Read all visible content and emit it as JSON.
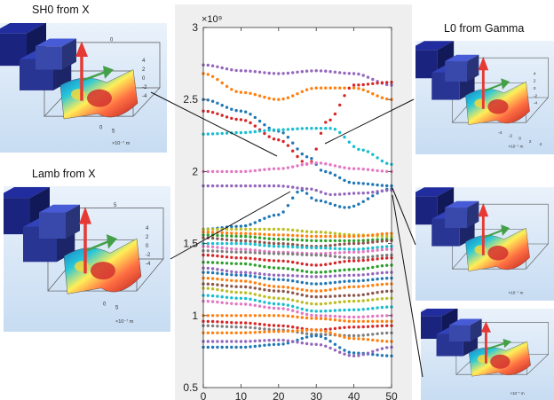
{
  "labels": {
    "sh0": "SH0 from X",
    "lamb": "Lamb from X",
    "l0": "L0 from Gamma"
  },
  "insets": {
    "sh0": {
      "z_ticks": [
        "4",
        "2",
        "0",
        "-2",
        "-4"
      ],
      "x_ticks": [
        "0",
        "5"
      ],
      "unit": "×10⁻⁷ m",
      "end_tick": "0"
    },
    "lamb": {
      "z_ticks": [
        "4",
        "2",
        "0",
        "-2",
        "-4"
      ],
      "x_ticks": [
        "0",
        "5"
      ],
      "unit": "×10⁻⁷ m",
      "end_tick": "5"
    },
    "l0": {
      "z_ticks": [
        "4",
        "2",
        "0",
        "-2",
        "-4"
      ],
      "x_ticks": [
        "-4",
        "-2",
        "0",
        "2",
        "4"
      ],
      "unit": "×10⁻⁷ m",
      "end_tick": ""
    },
    "right_mid": {
      "z_ticks": [
        "",
        "",
        "",
        "",
        ""
      ],
      "x_ticks": [],
      "unit": "×10⁻⁷ m",
      "end_tick": ""
    },
    "right_bottom": {
      "z_ticks": [
        "",
        "",
        "",
        "",
        ""
      ],
      "x_ticks": [],
      "unit": "×10⁻⁷ m",
      "end_tick": ""
    }
  },
  "chart_data": {
    "type": "scatter",
    "title": "",
    "xlabel": "",
    "ylabel": "",
    "y_multiplier_label": "×10⁹",
    "xlim": [
      0,
      50
    ],
    "ylim": [
      0.5,
      3
    ],
    "x_ticks": [
      "0",
      "10",
      "20",
      "30",
      "40",
      "50"
    ],
    "y_ticks": [
      "0.5",
      "1",
      "1.5",
      "2",
      "2.5",
      "3"
    ],
    "y_tick_values": [
      0.5,
      1,
      1.5,
      2,
      2.5,
      3
    ],
    "grid": false,
    "colors": [
      "#1f77b4",
      "#ff7f0e",
      "#2ca02c",
      "#d62728",
      "#9467bd",
      "#8c564b",
      "#e377c2",
      "#7f7f7f",
      "#bcbd22",
      "#17becf"
    ],
    "bands": [
      {
        "color": "#9467bd",
        "points": [
          [
            0,
            2.74
          ],
          [
            10,
            2.7
          ],
          [
            20,
            2.68
          ],
          [
            30,
            2.7
          ],
          [
            40,
            2.68
          ],
          [
            50,
            2.6
          ]
        ]
      },
      {
        "color": "#ff7f0e",
        "points": [
          [
            0,
            2.68
          ],
          [
            10,
            2.55
          ],
          [
            20,
            2.5
          ],
          [
            30,
            2.58
          ],
          [
            40,
            2.58
          ],
          [
            50,
            2.5
          ]
        ]
      },
      {
        "color": "#1f77b4",
        "points": [
          [
            0,
            2.5
          ],
          [
            10,
            2.42
          ],
          [
            20,
            2.28
          ],
          [
            28,
            2.1
          ],
          [
            32,
            2.0
          ],
          [
            40,
            1.92
          ],
          [
            50,
            1.9
          ]
        ]
      },
      {
        "color": "#d62728",
        "points": [
          [
            0,
            2.42
          ],
          [
            10,
            2.36
          ],
          [
            20,
            2.22
          ],
          [
            28,
            2.05
          ],
          [
            33,
            2.35
          ],
          [
            40,
            2.6
          ],
          [
            50,
            2.62
          ]
        ]
      },
      {
        "color": "#17becf",
        "points": [
          [
            0,
            2.26
          ],
          [
            10,
            2.27
          ],
          [
            20,
            2.29
          ],
          [
            28,
            2.3
          ],
          [
            34,
            2.3
          ],
          [
            42,
            2.15
          ],
          [
            50,
            2.05
          ]
        ]
      },
      {
        "color": "#e377c2",
        "points": [
          [
            0,
            2.0
          ],
          [
            10,
            2.0
          ],
          [
            20,
            2.02
          ],
          [
            30,
            2.06
          ],
          [
            40,
            2.02
          ],
          [
            50,
            2.0
          ]
        ]
      },
      {
        "color": "#1f77b4",
        "points": [
          [
            0,
            1.6
          ],
          [
            10,
            1.62
          ],
          [
            20,
            1.7
          ],
          [
            26,
            1.87
          ],
          [
            30,
            1.8
          ],
          [
            38,
            1.75
          ],
          [
            50,
            1.88
          ]
        ]
      },
      {
        "color": "#9467bd",
        "points": [
          [
            0,
            1.9
          ],
          [
            10,
            1.9
          ],
          [
            20,
            1.9
          ],
          [
            28,
            1.88
          ],
          [
            34,
            1.84
          ],
          [
            42,
            1.85
          ],
          [
            50,
            1.87
          ]
        ]
      },
      {
        "color": "#bcbd22",
        "points": [
          [
            0,
            1.6
          ],
          [
            10,
            1.6
          ],
          [
            20,
            1.6
          ],
          [
            30,
            1.58
          ],
          [
            40,
            1.56
          ],
          [
            50,
            1.55
          ]
        ]
      },
      {
        "color": "#ff7f0e",
        "points": [
          [
            0,
            1.58
          ],
          [
            10,
            1.57
          ],
          [
            20,
            1.56
          ],
          [
            30,
            1.55
          ],
          [
            40,
            1.55
          ],
          [
            50,
            1.57
          ]
        ]
      },
      {
        "color": "#2ca02c",
        "points": [
          [
            0,
            1.56
          ],
          [
            10,
            1.55
          ],
          [
            20,
            1.53
          ],
          [
            30,
            1.52
          ],
          [
            40,
            1.52
          ],
          [
            50,
            1.53
          ]
        ]
      },
      {
        "color": "#8c564b",
        "points": [
          [
            0,
            1.54
          ],
          [
            10,
            1.52
          ],
          [
            20,
            1.5
          ],
          [
            30,
            1.48
          ],
          [
            40,
            1.5
          ],
          [
            50,
            1.52
          ]
        ]
      },
      {
        "color": "#17becf",
        "points": [
          [
            0,
            1.5
          ],
          [
            10,
            1.5
          ],
          [
            20,
            1.48
          ],
          [
            30,
            1.47
          ],
          [
            40,
            1.46
          ],
          [
            50,
            1.48
          ]
        ]
      },
      {
        "color": "#e377c2",
        "points": [
          [
            0,
            1.48
          ],
          [
            10,
            1.46
          ],
          [
            20,
            1.44
          ],
          [
            30,
            1.43
          ],
          [
            40,
            1.44
          ],
          [
            50,
            1.46
          ]
        ]
      },
      {
        "color": "#7f7f7f",
        "points": [
          [
            0,
            1.45
          ],
          [
            10,
            1.44
          ],
          [
            20,
            1.43
          ],
          [
            30,
            1.42
          ],
          [
            40,
            1.4
          ],
          [
            50,
            1.42
          ]
        ]
      },
      {
        "color": "#d62728",
        "points": [
          [
            0,
            1.42
          ],
          [
            10,
            1.4
          ],
          [
            20,
            1.38
          ],
          [
            30,
            1.35
          ],
          [
            40,
            1.38
          ],
          [
            50,
            1.4
          ]
        ]
      },
      {
        "color": "#2ca02c",
        "points": [
          [
            0,
            1.37
          ],
          [
            10,
            1.36
          ],
          [
            20,
            1.33
          ],
          [
            30,
            1.3
          ],
          [
            40,
            1.32
          ],
          [
            50,
            1.35
          ]
        ]
      },
      {
        "color": "#9467bd",
        "points": [
          [
            0,
            1.33
          ],
          [
            10,
            1.3
          ],
          [
            20,
            1.28
          ],
          [
            30,
            1.27
          ],
          [
            40,
            1.28
          ],
          [
            50,
            1.3
          ]
        ]
      },
      {
        "color": "#1f77b4",
        "points": [
          [
            0,
            1.3
          ],
          [
            10,
            1.28
          ],
          [
            20,
            1.25
          ],
          [
            30,
            1.22
          ],
          [
            40,
            1.24
          ],
          [
            50,
            1.26
          ]
        ]
      },
      {
        "color": "#ff7f0e",
        "points": [
          [
            0,
            1.26
          ],
          [
            10,
            1.24
          ],
          [
            20,
            1.2
          ],
          [
            30,
            1.17
          ],
          [
            40,
            1.2
          ],
          [
            50,
            1.22
          ]
        ]
      },
      {
        "color": "#8c564b",
        "points": [
          [
            0,
            1.22
          ],
          [
            10,
            1.2
          ],
          [
            20,
            1.17
          ],
          [
            30,
            1.13
          ],
          [
            40,
            1.14
          ],
          [
            50,
            1.17
          ]
        ]
      },
      {
        "color": "#bcbd22",
        "points": [
          [
            0,
            1.19
          ],
          [
            10,
            1.16
          ],
          [
            20,
            1.12
          ],
          [
            30,
            1.08
          ],
          [
            40,
            1.1
          ],
          [
            50,
            1.12
          ]
        ]
      },
      {
        "color": "#17becf",
        "points": [
          [
            0,
            1.14
          ],
          [
            10,
            1.12
          ],
          [
            20,
            1.08
          ],
          [
            30,
            1.03
          ],
          [
            40,
            1.04
          ],
          [
            50,
            1.06
          ]
        ]
      },
      {
        "color": "#e377c2",
        "points": [
          [
            0,
            1.1
          ],
          [
            10,
            1.08
          ],
          [
            20,
            1.05
          ],
          [
            30,
            1.0
          ],
          [
            40,
            0.99
          ],
          [
            50,
            1.0
          ]
        ]
      },
      {
        "color": "#ff7f0e",
        "points": [
          [
            0,
            1.0
          ],
          [
            10,
            1.0
          ],
          [
            20,
            1.0
          ],
          [
            30,
            0.98
          ],
          [
            40,
            0.96
          ],
          [
            50,
            0.96
          ]
        ]
      },
      {
        "color": "#d62728",
        "points": [
          [
            0,
            0.96
          ],
          [
            10,
            0.95
          ],
          [
            20,
            0.93
          ],
          [
            30,
            0.9
          ],
          [
            40,
            0.92
          ],
          [
            50,
            0.93
          ]
        ]
      },
      {
        "color": "#7f7f7f",
        "points": [
          [
            0,
            0.93
          ],
          [
            10,
            0.92
          ],
          [
            20,
            0.9
          ],
          [
            30,
            0.87
          ],
          [
            40,
            0.86
          ],
          [
            50,
            0.88
          ]
        ]
      },
      {
        "color": "#ff7f0e",
        "points": [
          [
            0,
            0.88
          ],
          [
            10,
            0.88
          ],
          [
            20,
            0.89
          ],
          [
            30,
            0.9
          ],
          [
            40,
            0.84
          ],
          [
            50,
            0.82
          ]
        ]
      },
      {
        "color": "#1f77b4",
        "points": [
          [
            0,
            0.78
          ],
          [
            10,
            0.78
          ],
          [
            20,
            0.8
          ],
          [
            30,
            0.86
          ],
          [
            40,
            0.74
          ],
          [
            50,
            0.72
          ]
        ]
      },
      {
        "color": "#9467bd",
        "points": [
          [
            0,
            0.82
          ],
          [
            10,
            0.82
          ],
          [
            20,
            0.83
          ],
          [
            30,
            0.8
          ],
          [
            40,
            0.72
          ],
          [
            50,
            0.78
          ]
        ]
      }
    ]
  }
}
